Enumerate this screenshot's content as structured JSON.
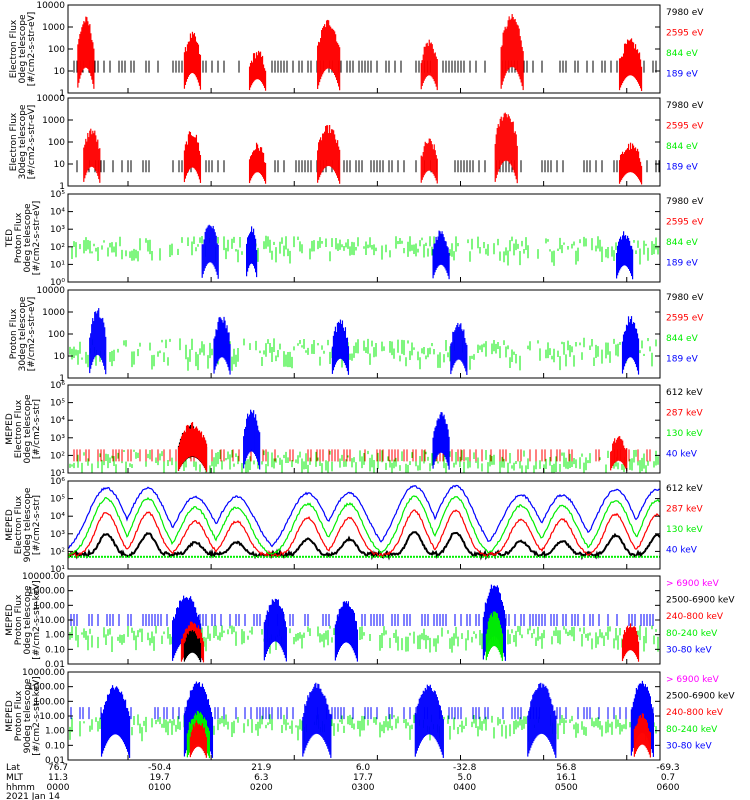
{
  "chart_data": [
    {
      "type": "scatter",
      "ylabel_lines": [
        "Electron Flux",
        "0deg telescope",
        "[#/cm2-s-str-eV]"
      ],
      "yscale": "log",
      "yticks": [
        "1",
        "10",
        "100",
        "1000",
        "10000"
      ],
      "ylim": [
        1,
        10000
      ],
      "series": [
        {
          "name": "7980 eV",
          "color": "#000000"
        },
        {
          "name": "2595 eV",
          "color": "#ff0000"
        },
        {
          "name": "844 eV",
          "color": "#00ee00"
        },
        {
          "name": "189 eV",
          "color": "#0000ff"
        }
      ],
      "bursts": [
        {
          "x": 0.03,
          "w": 0.03,
          "peak": 3.3,
          "color": "#ff0000"
        },
        {
          "x": 0.21,
          "w": 0.03,
          "peak": 2.6,
          "color": "#ff0000"
        },
        {
          "x": 0.32,
          "w": 0.03,
          "peak": 1.8,
          "color": "#ff0000"
        },
        {
          "x": 0.44,
          "w": 0.04,
          "peak": 3.2,
          "color": "#ff0000"
        },
        {
          "x": 0.61,
          "w": 0.03,
          "peak": 2.3,
          "color": "#ff0000"
        },
        {
          "x": 0.75,
          "w": 0.04,
          "peak": 3.4,
          "color": "#ff0000"
        },
        {
          "x": 0.95,
          "w": 0.04,
          "peak": 2.3,
          "color": "#ff0000"
        }
      ],
      "baseline": 1.2,
      "baseline_color": "#000000",
      "background_color": "",
      "background_level": null
    },
    {
      "type": "scatter",
      "ylabel_lines": [
        "Electron Flux",
        "30deg telescope",
        "[#/cm2-s-str-eV]"
      ],
      "yscale": "log",
      "yticks": [
        "1",
        "10",
        "100",
        "1000",
        "10000"
      ],
      "ylim": [
        1,
        10000
      ],
      "series": [
        {
          "name": "7980 eV",
          "color": "#000000"
        },
        {
          "name": "2595 eV",
          "color": "#ff0000"
        },
        {
          "name": "844 eV",
          "color": "#00ee00"
        },
        {
          "name": "189 eV",
          "color": "#0000ff"
        }
      ],
      "bursts": [
        {
          "x": 0.04,
          "w": 0.03,
          "peak": 2.5,
          "color": "#ff0000"
        },
        {
          "x": 0.21,
          "w": 0.03,
          "peak": 2.4,
          "color": "#ff0000"
        },
        {
          "x": 0.32,
          "w": 0.03,
          "peak": 1.8,
          "color": "#ff0000"
        },
        {
          "x": 0.44,
          "w": 0.04,
          "peak": 2.6,
          "color": "#ff0000"
        },
        {
          "x": 0.61,
          "w": 0.03,
          "peak": 2.0,
          "color": "#ff0000"
        },
        {
          "x": 0.74,
          "w": 0.04,
          "peak": 3.3,
          "color": "#ff0000"
        },
        {
          "x": 0.95,
          "w": 0.04,
          "peak": 1.8,
          "color": "#ff0000"
        }
      ],
      "baseline": 0.9,
      "baseline_color": "#000000",
      "background_color": "",
      "background_level": null
    },
    {
      "type": "scatter",
      "ylabel_lines": [
        "TED",
        "Proton Flux",
        "0deg telescope",
        "[#/cm2-s-str-eV]"
      ],
      "yscale": "log",
      "yticks": [
        "10⁰",
        "10¹",
        "10²",
        "10³",
        "10⁴",
        "10⁵"
      ],
      "ylim": [
        1,
        100000
      ],
      "series": [
        {
          "name": "7980 eV",
          "color": "#000000"
        },
        {
          "name": "2595 eV",
          "color": "#ff0000"
        },
        {
          "name": "844 eV",
          "color": "#00ee00"
        },
        {
          "name": "189 eV",
          "color": "#0000ff"
        }
      ],
      "bursts": [
        {
          "x": 0.24,
          "w": 0.03,
          "peak": 3.2,
          "color": "#0000ff"
        },
        {
          "x": 0.31,
          "w": 0.02,
          "peak": 3.0,
          "color": "#0000ff"
        },
        {
          "x": 0.63,
          "w": 0.03,
          "peak": 2.8,
          "color": "#0000ff"
        },
        {
          "x": 0.94,
          "w": 0.03,
          "peak": 2.7,
          "color": "#0000ff"
        }
      ],
      "baseline": null,
      "baseline_color": "",
      "background_color": "#00ee00",
      "background_level": 2.0
    },
    {
      "type": "scatter",
      "ylabel_lines": [
        "Proton Flux",
        "30deg telescope",
        "[#/cm2-s-str-eV]"
      ],
      "yscale": "log",
      "yticks": [
        "1",
        "10",
        "100",
        "1000",
        "10000"
      ],
      "ylim": [
        1,
        10000
      ],
      "series": [
        {
          "name": "7980 eV",
          "color": "#000000"
        },
        {
          "name": "2595 eV",
          "color": "#ff0000"
        },
        {
          "name": "844 eV",
          "color": "#00ee00"
        },
        {
          "name": "189 eV",
          "color": "#0000ff"
        }
      ],
      "bursts": [
        {
          "x": 0.05,
          "w": 0.03,
          "peak": 3.0,
          "color": "#0000ff"
        },
        {
          "x": 0.26,
          "w": 0.03,
          "peak": 2.7,
          "color": "#0000ff"
        },
        {
          "x": 0.46,
          "w": 0.03,
          "peak": 2.5,
          "color": "#0000ff"
        },
        {
          "x": 0.66,
          "w": 0.03,
          "peak": 2.4,
          "color": "#0000ff"
        },
        {
          "x": 0.95,
          "w": 0.03,
          "peak": 2.7,
          "color": "#0000ff"
        }
      ],
      "baseline": null,
      "baseline_color": "",
      "background_color": "#00ee00",
      "background_level": 1.2
    },
    {
      "type": "scatter",
      "ylabel_lines": [
        "MEPED",
        "Electron Flux",
        "0deg telescope",
        "[#/cm2-s-str]"
      ],
      "yscale": "log",
      "yticks": [
        "10¹",
        "10²",
        "10³",
        "10⁴",
        "10⁵",
        "10⁶"
      ],
      "ylim": [
        10,
        1000000
      ],
      "series": [
        {
          "name": "612 keV",
          "color": "#000000"
        },
        {
          "name": "287 keV",
          "color": "#ff0000"
        },
        {
          "name": "130 keV",
          "color": "#00ee00"
        },
        {
          "name": "40 keV",
          "color": "#0000ff"
        }
      ],
      "bursts": [
        {
          "x": 0.21,
          "w": 0.05,
          "peak": 3.6,
          "color": "#000000"
        },
        {
          "x": 0.21,
          "w": 0.05,
          "peak": 3.7,
          "color": "#ff0000"
        },
        {
          "x": 0.31,
          "w": 0.03,
          "peak": 4.5,
          "color": "#0000ff"
        },
        {
          "x": 0.63,
          "w": 0.03,
          "peak": 4.3,
          "color": "#0000ff"
        },
        {
          "x": 0.93,
          "w": 0.03,
          "peak": 3.0,
          "color": "#ff0000"
        }
      ],
      "baseline": 2.0,
      "baseline_color": "#ff0000",
      "background_color": "#00ee00",
      "background_level": 1.7
    },
    {
      "type": "line",
      "ylabel_lines": [
        "MEPED",
        "Electron Flux",
        "90deg telescope",
        "[#/cm2-s-str]"
      ],
      "yscale": "log",
      "yticks": [
        "10¹",
        "10²",
        "10³",
        "10⁴",
        "10⁵",
        "10⁶"
      ],
      "ylim": [
        10,
        1000000
      ],
      "series": [
        {
          "name": "612 keV",
          "color": "#000000"
        },
        {
          "name": "287 keV",
          "color": "#ff0000"
        },
        {
          "name": "130 keV",
          "color": "#00ee00"
        },
        {
          "name": "40 keV",
          "color": "#0000ff"
        }
      ],
      "orbit_centers": [
        0.1,
        0.25,
        0.44,
        0.62,
        0.8,
        0.96
      ],
      "orbit_peaks": [
        5.6,
        5.1,
        5.3,
        5.7,
        5.2,
        5.5
      ]
    },
    {
      "type": "scatter",
      "ylabel_lines": [
        "MEPED",
        "Proton Flux",
        "0deg telescope",
        "[#/cm2-s-str-keV]"
      ],
      "yscale": "log",
      "yticks": [
        "0.01",
        "0.10",
        "1.00",
        "10.00",
        "100.00",
        "1000.00",
        "10000.00"
      ],
      "ylim": [
        0.01,
        10000
      ],
      "series": [
        {
          "name": "> 6900 keV",
          "color": "#ff00ff"
        },
        {
          "name": "2500-6900 keV",
          "color": "#000000"
        },
        {
          "name": "240-800 keV",
          "color": "#ff0000"
        },
        {
          "name": "80-240 keV",
          "color": "#00ee00"
        },
        {
          "name": "30-80 keV",
          "color": "#0000ff"
        }
      ],
      "bursts": [
        {
          "x": 0.2,
          "w": 0.05,
          "peak": 2.6,
          "color": "#0000ff"
        },
        {
          "x": 0.21,
          "w": 0.04,
          "peak": 0.8,
          "color": "#ff0000"
        },
        {
          "x": 0.21,
          "w": 0.03,
          "peak": 0.2,
          "color": "#000000"
        },
        {
          "x": 0.35,
          "w": 0.04,
          "peak": 2.4,
          "color": "#0000ff"
        },
        {
          "x": 0.47,
          "w": 0.04,
          "peak": 2.2,
          "color": "#0000ff"
        },
        {
          "x": 0.72,
          "w": 0.04,
          "peak": 3.4,
          "color": "#0000ff"
        },
        {
          "x": 0.72,
          "w": 0.03,
          "peak": 1.5,
          "color": "#00ee00"
        },
        {
          "x": 0.95,
          "w": 0.03,
          "peak": 0.7,
          "color": "#ff0000"
        }
      ],
      "baseline": 1.0,
      "baseline_color": "#0000ff",
      "background_color": "#00ee00",
      "background_level": 0.0
    },
    {
      "type": "scatter",
      "ylabel_lines": [
        "MEPED",
        "Proton Flux",
        "90deg telescope",
        "[#/cm2-s-str-keV]"
      ],
      "yscale": "log",
      "yticks": [
        "0.01",
        "0.10",
        "1.00",
        "10.00",
        "100.00",
        "1000.00",
        "10000.00"
      ],
      "ylim": [
        0.01,
        10000
      ],
      "series": [
        {
          "name": "> 6900 keV",
          "color": "#ff00ff"
        },
        {
          "name": "2500-6900 keV",
          "color": "#000000"
        },
        {
          "name": "240-800 keV",
          "color": "#ff0000"
        },
        {
          "name": "80-240 keV",
          "color": "#00ee00"
        },
        {
          "name": "30-80 keV",
          "color": "#0000ff"
        }
      ],
      "bursts": [
        {
          "x": 0.08,
          "w": 0.05,
          "peak": 3.0,
          "color": "#0000ff"
        },
        {
          "x": 0.22,
          "w": 0.05,
          "peak": 3.2,
          "color": "#0000ff"
        },
        {
          "x": 0.22,
          "w": 0.04,
          "peak": 1.2,
          "color": "#00ee00"
        },
        {
          "x": 0.22,
          "w": 0.03,
          "peak": 0.6,
          "color": "#ff0000"
        },
        {
          "x": 0.42,
          "w": 0.05,
          "peak": 3.1,
          "color": "#0000ff"
        },
        {
          "x": 0.61,
          "w": 0.05,
          "peak": 3.0,
          "color": "#0000ff"
        },
        {
          "x": 0.8,
          "w": 0.05,
          "peak": 3.1,
          "color": "#0000ff"
        },
        {
          "x": 0.97,
          "w": 0.04,
          "peak": 3.3,
          "color": "#0000ff"
        },
        {
          "x": 0.97,
          "w": 0.03,
          "peak": 1.0,
          "color": "#ff0000"
        }
      ],
      "baseline": 1.2,
      "baseline_color": "#0000ff",
      "background_color": "#00ee00",
      "background_level": 0.5
    }
  ],
  "xaxis": {
    "row_labels": [
      "Lat",
      "MLT",
      "hhmm",
      "2021 Jan 14"
    ],
    "lat": [
      "76.7",
      "-50.4",
      "21.9",
      "6.0",
      "-32.8",
      "56.8",
      "-69.3"
    ],
    "mlt": [
      "11.3",
      "19.7",
      "6.3",
      "17.7",
      "5.0",
      "16.1",
      "0.7"
    ],
    "hhmm": [
      "0000",
      "0100",
      "0200",
      "0300",
      "0400",
      "0500",
      "0600"
    ]
  }
}
